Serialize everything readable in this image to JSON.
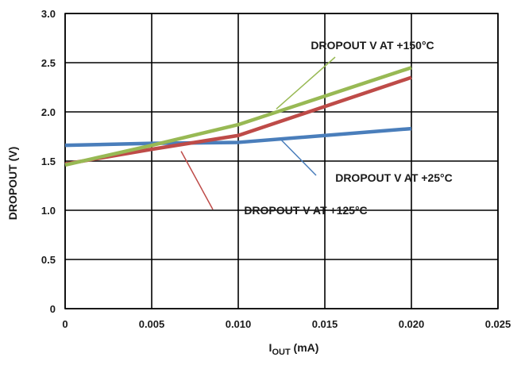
{
  "chart_data": {
    "type": "line",
    "title": "",
    "xlabel": {
      "main": "I",
      "sub": "OUT",
      "unit": " (mA)"
    },
    "ylabel": "DROPOUT (V)",
    "xlim": [
      0,
      0.025
    ],
    "ylim": [
      0,
      3.0
    ],
    "grid": true,
    "x_ticks": [
      0,
      0.005,
      0.01,
      0.015,
      0.02,
      0.025
    ],
    "x_tick_labels": [
      "0",
      "0.005",
      "0.010",
      "0.015",
      "0.020",
      "0.025"
    ],
    "y_ticks": [
      0,
      0.5,
      1.0,
      1.5,
      2.0,
      2.5,
      3.0
    ],
    "y_tick_labels": [
      "0",
      "0.5",
      "1.0",
      "1.5",
      "2.0",
      "2.5",
      "3.0"
    ],
    "series": [
      {
        "name": "DROPOUT V AT +25°C",
        "color": "#4a7ebb",
        "x": [
          0,
          0.005,
          0.01,
          0.02
        ],
        "y": [
          1.66,
          1.68,
          1.69,
          1.83
        ]
      },
      {
        "name": "DROPOUT V AT +125°C",
        "color": "#be4b48",
        "x": [
          0,
          0.005,
          0.01,
          0.02
        ],
        "y": [
          1.47,
          1.62,
          1.76,
          2.35
        ]
      },
      {
        "name": "DROPOUT V AT +150°C",
        "color": "#98b954",
        "x": [
          0,
          0.005,
          0.01,
          0.02
        ],
        "y": [
          1.46,
          1.66,
          1.87,
          2.45
        ]
      }
    ],
    "annotations": [
      {
        "text": "DROPOUT V AT +150°C",
        "series": 2,
        "target_x": 0.0122,
        "target_y": 2.03
      },
      {
        "text": "DROPOUT V AT +25°C",
        "series": 0,
        "target_x": 0.0124,
        "target_y": 1.73
      },
      {
        "text": "DROPOUT V AT +125°C",
        "series": 1,
        "target_x": 0.0067,
        "target_y": 1.6
      }
    ]
  }
}
